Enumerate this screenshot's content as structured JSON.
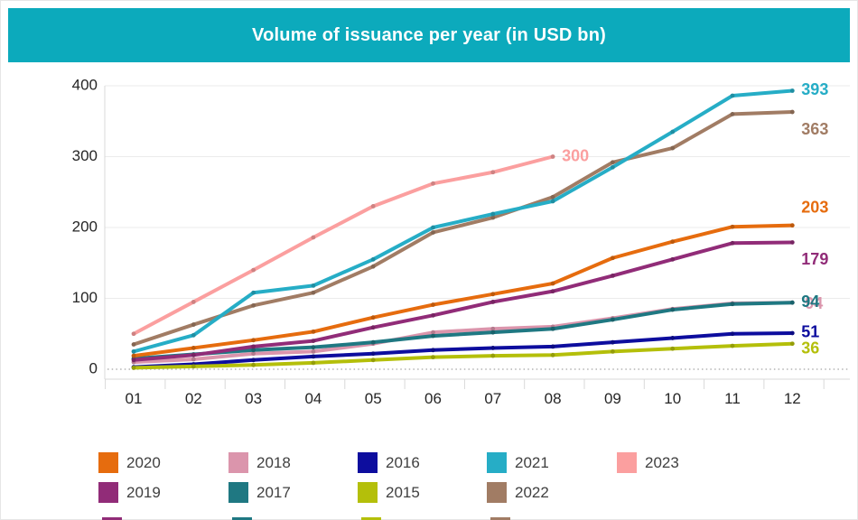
{
  "title": "Volume of issuance per year (in USD bn)",
  "colors": {
    "banner_bg": "#0caabc",
    "title_text": "#ffffff",
    "axis_text": "#262626",
    "grid_line": "#ebebeb",
    "axis_line": "#d9d9d9",
    "zero_dotted_line": "#b3b3b3",
    "legend_text": "#404040"
  },
  "chart_data": {
    "type": "line",
    "title": "Volume of issuance per year (in USD bn)",
    "xlabel": "",
    "ylabel": "",
    "x_categories": [
      "01",
      "02",
      "03",
      "04",
      "05",
      "06",
      "07",
      "08",
      "09",
      "10",
      "11",
      "12"
    ],
    "ylim": [
      0,
      400
    ],
    "y_ticks": [
      0,
      100,
      200,
      300,
      400
    ],
    "grid": true,
    "zero_line_style": "dotted",
    "legend_position": "bottom",
    "series": [
      {
        "name": "2016",
        "color": "#0d0d9e",
        "end_label": "51",
        "values": [
          3,
          7,
          13,
          18,
          22,
          27,
          30,
          32,
          38,
          44,
          50,
          51
        ]
      },
      {
        "name": "2015",
        "color": "#b4bf0a",
        "end_label": "36",
        "values": [
          2,
          4,
          6,
          9,
          13,
          17,
          19,
          20,
          25,
          29,
          33,
          36
        ]
      },
      {
        "name": "2018",
        "color": "#db95ac",
        "end_label": "94",
        "values": [
          10,
          14,
          22,
          25,
          36,
          52,
          57,
          60,
          72,
          85,
          93,
          94
        ]
      },
      {
        "name": "2017",
        "color": "#1f7882",
        "end_label": "94",
        "values": [
          15,
          21,
          27,
          31,
          38,
          47,
          52,
          57,
          70,
          84,
          92,
          94
        ]
      },
      {
        "name": "2019",
        "color": "#912c78",
        "end_label": "179",
        "values": [
          13,
          20,
          32,
          40,
          59,
          76,
          95,
          110,
          132,
          155,
          178,
          179
        ]
      },
      {
        "name": "2020",
        "color": "#e66c0e",
        "end_label": "203",
        "values": [
          19,
          30,
          41,
          53,
          73,
          91,
          106,
          121,
          157,
          180,
          201,
          203
        ]
      },
      {
        "name": "2022",
        "color": "#a17c64",
        "end_label": "363",
        "values": [
          35,
          63,
          90,
          108,
          145,
          193,
          214,
          243,
          292,
          312,
          360,
          363
        ]
      },
      {
        "name": "2021",
        "color": "#26adc6",
        "end_label": "393",
        "values": [
          25,
          48,
          108,
          118,
          155,
          200,
          219,
          237,
          285,
          335,
          386,
          393
        ]
      },
      {
        "name": "2023",
        "color": "#fb9f9f",
        "end_label": "300",
        "values": [
          50,
          95,
          140,
          186,
          230,
          262,
          278,
          300,
          null,
          null,
          null,
          null
        ]
      }
    ],
    "legend_rows": [
      [
        "2020",
        "2018",
        "2016",
        "2021",
        "2023"
      ],
      [
        "2019",
        "2017",
        "2015",
        "2022"
      ]
    ]
  }
}
